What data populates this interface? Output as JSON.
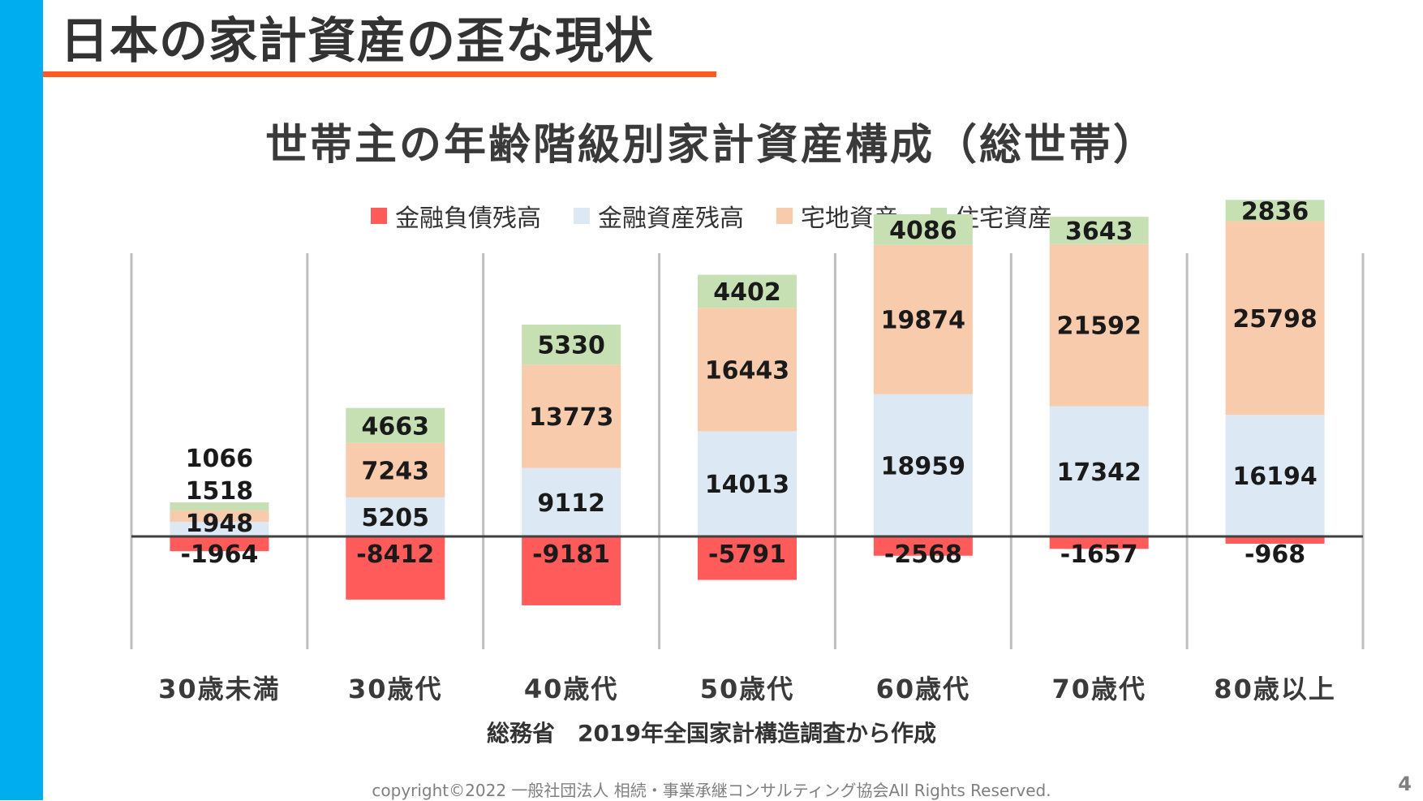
{
  "slide": {
    "title": "日本の家計資産の歪な現状",
    "source": "総務省　2019年全国家計構造調査から作成",
    "copyright": "copyright©2022 一般社団法人 相続・事業承継コンサルティング協会All Rights Reserved.",
    "page_number": "4"
  },
  "colors": {
    "accent_bar": "#00aeef",
    "title_underline": "#ff5a1f"
  },
  "chart_data": {
    "type": "bar",
    "stacked": true,
    "title": "世帯主の年齢階級別家計資産構成（総世帯）",
    "categories": [
      "30歳未満",
      "30歳代",
      "40歳代",
      "50歳代",
      "60歳代",
      "70歳代",
      "80歳以上"
    ],
    "series": [
      {
        "name": "金融負債残高",
        "color": "#ff5b5b",
        "values": [
          -1964,
          -8412,
          -9181,
          -5791,
          -2568,
          -1657,
          -968
        ]
      },
      {
        "name": "金融資産残高",
        "color": "#dde8f5",
        "values": [
          1948,
          5205,
          9112,
          14013,
          18959,
          17342,
          16194
        ]
      },
      {
        "name": "宅地資産",
        "color": "#f8cbad",
        "values": [
          1518,
          7243,
          13773,
          16443,
          19874,
          21592,
          25798
        ]
      },
      {
        "name": "住宅資産",
        "color": "#c6e0b4",
        "values": [
          1066,
          4663,
          5330,
          4402,
          4086,
          3643,
          2836
        ]
      }
    ],
    "ylim": [
      -20000,
      50000
    ],
    "grid": false,
    "legend_position": "top"
  }
}
